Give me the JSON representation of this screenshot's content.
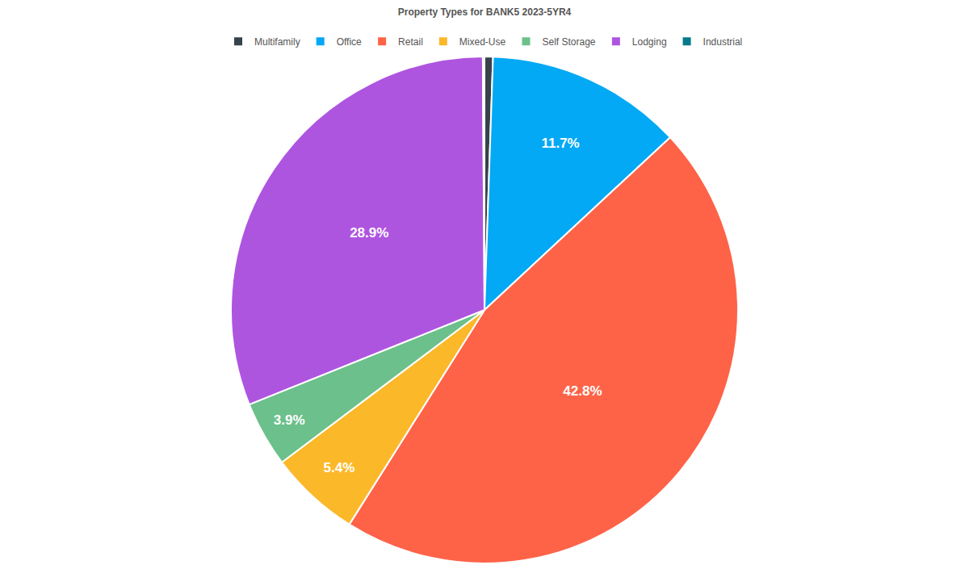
{
  "chart_data": {
    "type": "pie",
    "title": "Property Types for BANK5 2023-5YR4",
    "categories": [
      "Multifamily",
      "Office",
      "Retail",
      "Mixed-Use",
      "Self Storage",
      "Lodging",
      "Industrial"
    ],
    "values": [
      0.5,
      11.7,
      42.8,
      5.4,
      3.9,
      28.9,
      0.1
    ],
    "value_labels": [
      null,
      "11.7%",
      "42.8%",
      "5.4%",
      "3.9%",
      "28.9%",
      null
    ],
    "colors": [
      "#37424a",
      "#03a9f4",
      "#fe6348",
      "#fbb829",
      "#6cc08b",
      "#ae55e0",
      "#057a8a"
    ],
    "legend": "top",
    "data_labels": true
  }
}
